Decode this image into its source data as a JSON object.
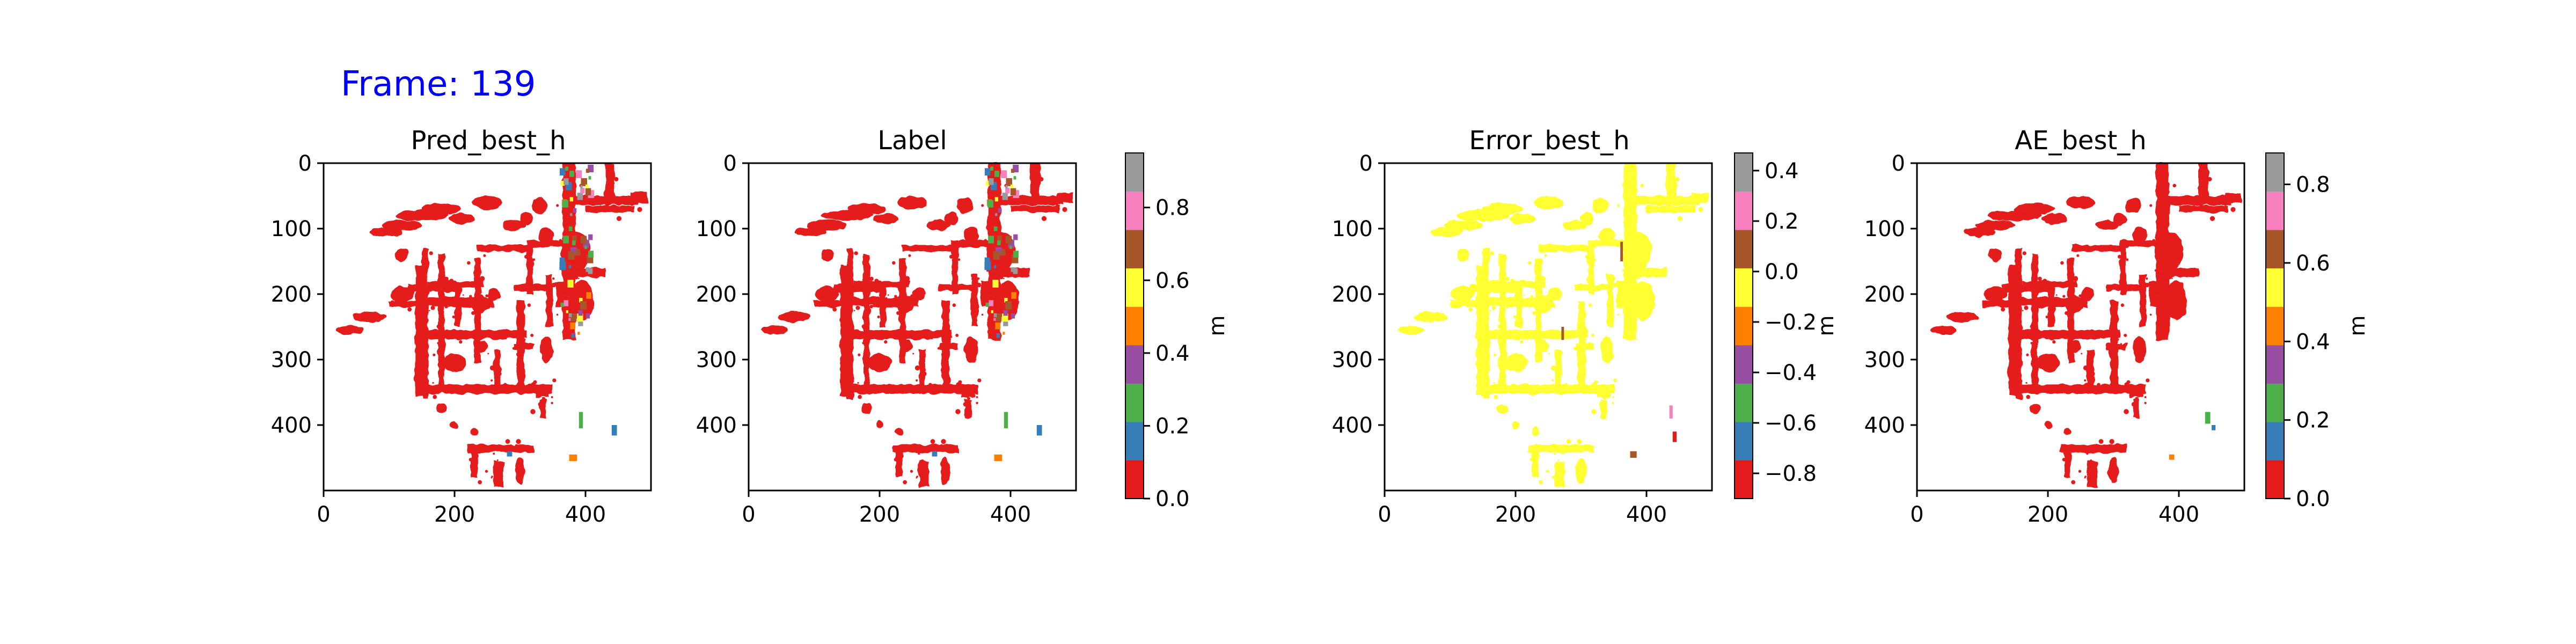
{
  "frame_label": "Frame: 139",
  "colors": {
    "frame_label": "#0000ff",
    "axis": "#000000",
    "background": "#ffffff",
    "map_main": "#e41a1c",
    "map_error_main": "#ffff33",
    "set1_bands": [
      "#e41a1c",
      "#377eb8",
      "#4daf4a",
      "#984ea3",
      "#ff7f00",
      "#ffff33",
      "#a65628",
      "#f781bf",
      "#999999"
    ]
  },
  "chart_data": [
    {
      "type": "heatmap",
      "title": "Pred_best_h",
      "xlabel": "",
      "ylabel": "",
      "x_ticks": [
        "0",
        "200",
        "400"
      ],
      "y_ticks": [
        "0",
        "100",
        "200",
        "300",
        "400"
      ],
      "xlim": [
        0,
        500
      ],
      "ylim": [
        500,
        0
      ],
      "colormap": "Set1",
      "colorbar": null
    },
    {
      "type": "heatmap",
      "title": "Label",
      "xlabel": "",
      "ylabel": "",
      "x_ticks": [
        "0",
        "200",
        "400"
      ],
      "y_ticks": [
        "0",
        "100",
        "200",
        "300",
        "400"
      ],
      "xlim": [
        0,
        500
      ],
      "ylim": [
        500,
        0
      ],
      "colormap": "Set1",
      "colorbar": {
        "label": "m",
        "range": [
          0.0,
          0.95
        ],
        "ticks": [
          "0.0",
          "0.2",
          "0.4",
          "0.6",
          "0.8"
        ],
        "tick_values": [
          0.0,
          0.2,
          0.4,
          0.6,
          0.8
        ]
      }
    },
    {
      "type": "heatmap",
      "title": "Error_best_h",
      "xlabel": "",
      "ylabel": "",
      "x_ticks": [
        "0",
        "200",
        "400"
      ],
      "y_ticks": [
        "0",
        "100",
        "200",
        "300",
        "400"
      ],
      "xlim": [
        0,
        500
      ],
      "ylim": [
        500,
        0
      ],
      "colormap": "Set1",
      "colorbar": {
        "label": "m",
        "range": [
          -0.9,
          0.47
        ],
        "ticks": [
          "0.4",
          "0.2",
          "0.0",
          "−0.2",
          "−0.4",
          "−0.6",
          "−0.8"
        ],
        "tick_values": [
          0.4,
          0.2,
          0.0,
          -0.2,
          -0.4,
          -0.6,
          -0.8
        ]
      }
    },
    {
      "type": "heatmap",
      "title": "AE_best_h",
      "xlabel": "",
      "ylabel": "",
      "x_ticks": [
        "0",
        "200",
        "400"
      ],
      "y_ticks": [
        "0",
        "100",
        "200",
        "300",
        "400"
      ],
      "xlim": [
        0,
        500
      ],
      "ylim": [
        500,
        0
      ],
      "colormap": "Set1",
      "colorbar": {
        "label": "m",
        "range": [
          0.0,
          0.88
        ],
        "ticks": [
          "0.0",
          "0.2",
          "0.4",
          "0.6",
          "0.8"
        ],
        "tick_values": [
          0.0,
          0.2,
          0.4,
          0.6,
          0.8
        ]
      }
    }
  ]
}
